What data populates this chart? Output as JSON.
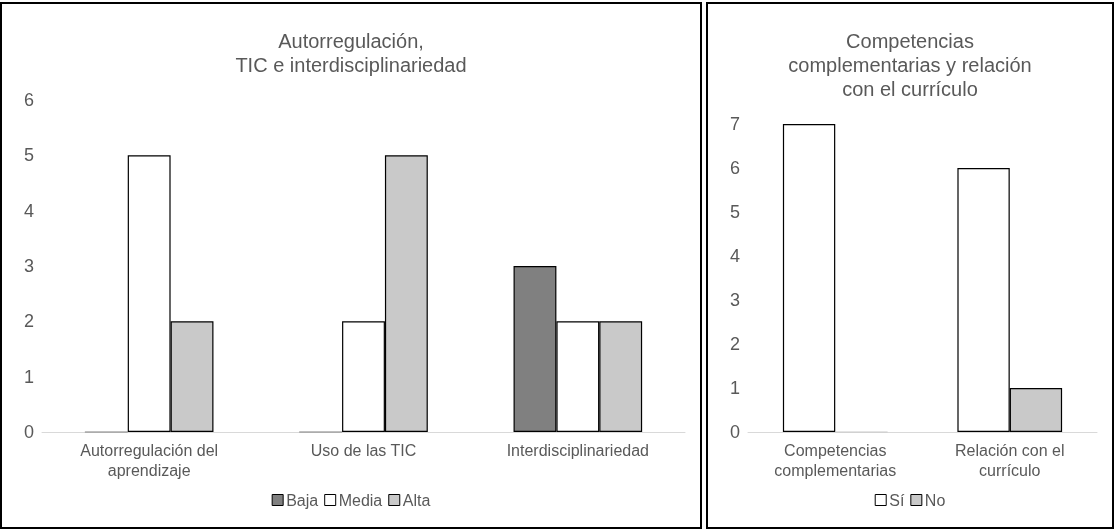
{
  "chart_data": [
    {
      "type": "bar",
      "title": "Autorregulación,\nTIC e interdisciplinariedad",
      "categories": [
        "Autorregulación del\naprendizaje",
        "Uso de las TIC",
        "Interdisciplinariedad"
      ],
      "series": [
        {
          "name": "Baja",
          "color": "#808080",
          "values": [
            0,
            0,
            3
          ]
        },
        {
          "name": "Media",
          "color": "#ffffff",
          "values": [
            5,
            2,
            2
          ]
        },
        {
          "name": "Alta",
          "color": "#c9c9c9",
          "values": [
            2,
            5,
            2
          ]
        }
      ],
      "ylim": [
        0,
        6
      ],
      "yticks": [
        0,
        1,
        2,
        3,
        4,
        5,
        6
      ],
      "grid": false,
      "legend": "bottom"
    },
    {
      "type": "bar",
      "title": "Competencias\ncomplementarias y relación\ncon el currículo",
      "categories": [
        "Competencias\ncomplementarias",
        "Relación con el\ncurrículo"
      ],
      "series": [
        {
          "name": "Sí",
          "color": "#ffffff",
          "values": [
            7,
            6
          ]
        },
        {
          "name": "No",
          "color": "#c9c9c9",
          "values": [
            0,
            1
          ]
        }
      ],
      "ylim": [
        0,
        7
      ],
      "yticks": [
        0,
        1,
        2,
        3,
        4,
        5,
        6,
        7
      ],
      "grid": false,
      "legend": "bottom"
    }
  ]
}
